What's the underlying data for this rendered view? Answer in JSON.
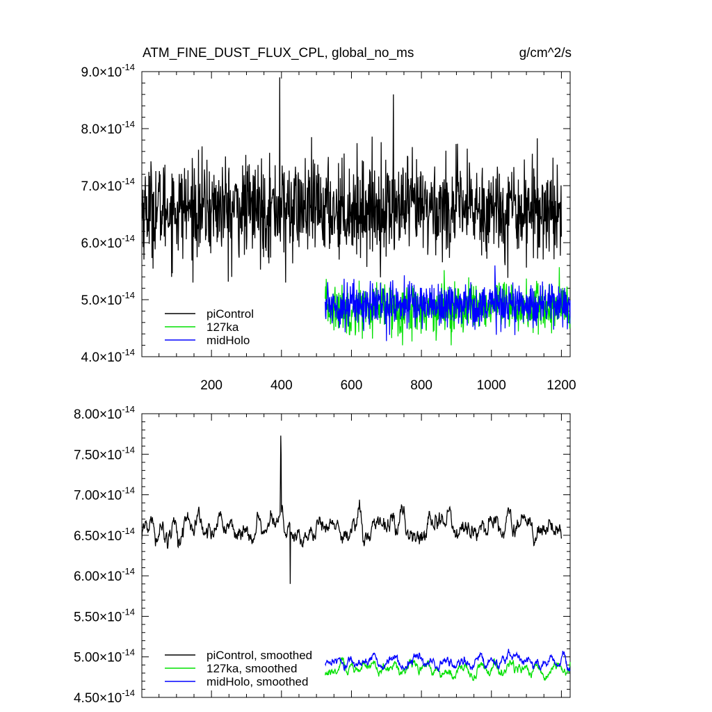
{
  "chart_data": [
    {
      "type": "line",
      "title": "ATM_FINE_DUST_FLUX_CPL, global_no_ms",
      "units": "g/cm^2/s",
      "xlim": [
        1,
        1225
      ],
      "ylim": [
        4e-14,
        9e-14
      ],
      "x_ticks": [
        200,
        400,
        600,
        800,
        1000,
        1200
      ],
      "y_ticks": [
        {
          "mant": "4.0",
          "exp": "-14",
          "v": 4e-14
        },
        {
          "mant": "5.0",
          "exp": "-14",
          "v": 5e-14
        },
        {
          "mant": "6.0",
          "exp": "-14",
          "v": 6e-14
        },
        {
          "mant": "7.0",
          "exp": "-14",
          "v": 7e-14
        },
        {
          "mant": "8.0",
          "exp": "-14",
          "v": 8e-14
        },
        {
          "mant": "9.0",
          "exp": "-14",
          "v": 9e-14
        }
      ],
      "legend_position": "bottom-left",
      "series": [
        {
          "name": "piControl",
          "color": "#000000",
          "x_range": [
            1,
            1200
          ],
          "mean": 6.6e-14,
          "noise": 4.2e-15,
          "min": 5.3e-14,
          "max": 8.9e-14,
          "approximate": true
        },
        {
          "name": "127ka",
          "color": "#00e000",
          "x_range": [
            525,
            1225
          ],
          "mean": 4.85e-14,
          "noise": 2.2e-15,
          "min": 4.2e-14,
          "max": 5.6e-14,
          "approximate": true
        },
        {
          "name": "midHolo",
          "color": "#0000ff",
          "x_range": [
            525,
            1225
          ],
          "mean": 4.92e-14,
          "noise": 2e-15,
          "min": 4.1e-14,
          "max": 5.6e-14,
          "approximate": true
        }
      ]
    },
    {
      "type": "line",
      "xlim": [
        1,
        1225
      ],
      "ylim": [
        4.5e-14,
        8e-14
      ],
      "x_ticks": [
        200,
        400,
        600,
        800,
        1000,
        1200
      ],
      "y_ticks": [
        {
          "mant": "4.50",
          "exp": "-14",
          "v": 4.5e-14
        },
        {
          "mant": "5.00",
          "exp": "-14",
          "v": 5e-14
        },
        {
          "mant": "5.50",
          "exp": "-14",
          "v": 5.5e-14
        },
        {
          "mant": "6.00",
          "exp": "-14",
          "v": 6e-14
        },
        {
          "mant": "6.50",
          "exp": "-14",
          "v": 6.5e-14
        },
        {
          "mant": "7.00",
          "exp": "-14",
          "v": 7e-14
        },
        {
          "mant": "7.50",
          "exp": "-14",
          "v": 7.5e-14
        },
        {
          "mant": "8.00",
          "exp": "-14",
          "v": 8e-14
        }
      ],
      "legend_position": "bottom-left",
      "series": [
        {
          "name": "piControl, smoothed",
          "color": "#000000",
          "x_range": [
            1,
            1200
          ],
          "mean": 6.6e-14,
          "noise": 1.8e-15,
          "min": 5.9e-14,
          "max": 7.73e-14,
          "approximate": true
        },
        {
          "name": "127ka, smoothed",
          "color": "#00e000",
          "x_range": [
            525,
            1225
          ],
          "mean": 4.85e-14,
          "noise": 9e-16,
          "min": 4.6e-14,
          "max": 5.2e-14,
          "approximate": true
        },
        {
          "name": "midHolo, smoothed",
          "color": "#0000ff",
          "x_range": [
            525,
            1225
          ],
          "mean": 4.93e-14,
          "noise": 9e-16,
          "min": 4.7e-14,
          "max": 5.22e-14,
          "approximate": true
        }
      ]
    }
  ],
  "x_symbol": "×"
}
